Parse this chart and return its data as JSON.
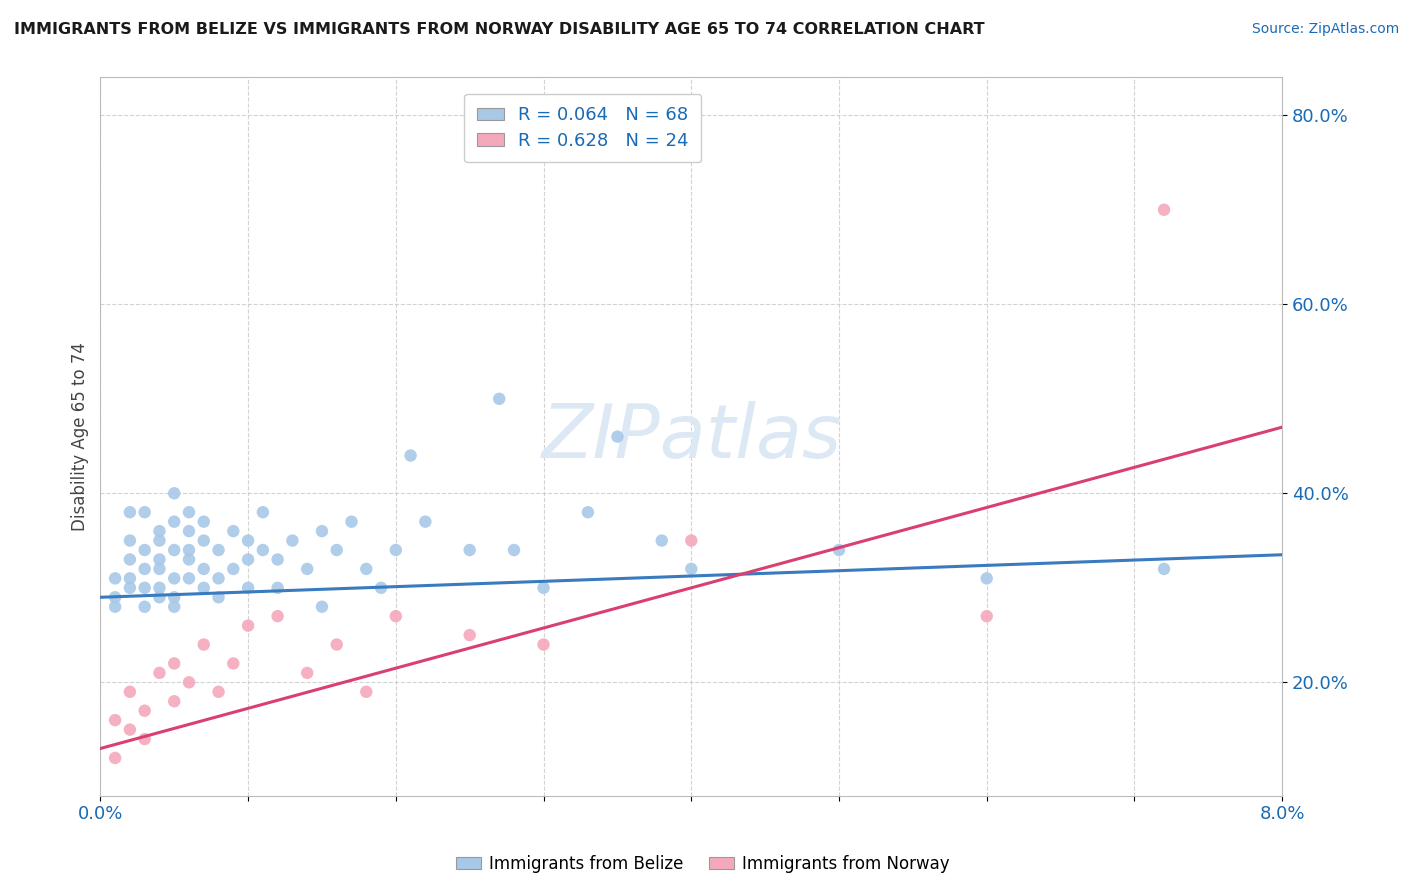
{
  "title": "IMMIGRANTS FROM BELIZE VS IMMIGRANTS FROM NORWAY DISABILITY AGE 65 TO 74 CORRELATION CHART",
  "source_text": "Source: ZipAtlas.com",
  "ylabel": "Disability Age 65 to 74",
  "xlim": [
    0.0,
    0.08
  ],
  "ylim": [
    0.08,
    0.84
  ],
  "x_ticks": [
    0.0,
    0.01,
    0.02,
    0.03,
    0.04,
    0.05,
    0.06,
    0.07,
    0.08
  ],
  "y_ticks": [
    0.2,
    0.4,
    0.6,
    0.8
  ],
  "x_tick_labels": [
    "0.0%",
    "",
    "",
    "",
    "",
    "",
    "",
    "",
    "8.0%"
  ],
  "y_tick_labels": [
    "20.0%",
    "40.0%",
    "60.0%",
    "80.0%"
  ],
  "belize_color": "#a8c8e8",
  "norway_color": "#f4a8bc",
  "belize_line_color": "#3a7abf",
  "norway_line_color": "#d94070",
  "belize_R": 0.064,
  "belize_N": 68,
  "norway_R": 0.628,
  "norway_N": 24,
  "legend_color": "#1a6bb5",
  "belize_line_y0": 0.29,
  "belize_line_y1": 0.335,
  "norway_line_y0": 0.13,
  "norway_line_y1": 0.47,
  "belize_x": [
    0.001,
    0.001,
    0.001,
    0.002,
    0.002,
    0.002,
    0.002,
    0.002,
    0.003,
    0.003,
    0.003,
    0.003,
    0.003,
    0.004,
    0.004,
    0.004,
    0.004,
    0.004,
    0.004,
    0.005,
    0.005,
    0.005,
    0.005,
    0.005,
    0.005,
    0.006,
    0.006,
    0.006,
    0.006,
    0.006,
    0.007,
    0.007,
    0.007,
    0.007,
    0.008,
    0.008,
    0.008,
    0.009,
    0.009,
    0.01,
    0.01,
    0.01,
    0.011,
    0.011,
    0.012,
    0.012,
    0.013,
    0.014,
    0.015,
    0.015,
    0.016,
    0.017,
    0.018,
    0.019,
    0.02,
    0.021,
    0.022,
    0.025,
    0.027,
    0.028,
    0.03,
    0.033,
    0.035,
    0.038,
    0.04,
    0.05,
    0.06,
    0.072
  ],
  "belize_y": [
    0.29,
    0.31,
    0.28,
    0.35,
    0.31,
    0.38,
    0.3,
    0.33,
    0.34,
    0.32,
    0.3,
    0.28,
    0.38,
    0.36,
    0.33,
    0.3,
    0.29,
    0.35,
    0.32,
    0.4,
    0.37,
    0.34,
    0.31,
    0.29,
    0.28,
    0.36,
    0.33,
    0.31,
    0.34,
    0.38,
    0.37,
    0.35,
    0.32,
    0.3,
    0.34,
    0.31,
    0.29,
    0.32,
    0.36,
    0.35,
    0.33,
    0.3,
    0.34,
    0.38,
    0.33,
    0.3,
    0.35,
    0.32,
    0.36,
    0.28,
    0.34,
    0.37,
    0.32,
    0.3,
    0.34,
    0.44,
    0.37,
    0.34,
    0.5,
    0.34,
    0.3,
    0.38,
    0.46,
    0.35,
    0.32,
    0.34,
    0.31,
    0.32
  ],
  "norway_x": [
    0.001,
    0.001,
    0.002,
    0.002,
    0.003,
    0.003,
    0.004,
    0.005,
    0.005,
    0.006,
    0.007,
    0.008,
    0.009,
    0.01,
    0.012,
    0.014,
    0.016,
    0.018,
    0.02,
    0.025,
    0.03,
    0.04,
    0.06,
    0.072
  ],
  "norway_y": [
    0.16,
    0.12,
    0.19,
    0.15,
    0.17,
    0.14,
    0.21,
    0.18,
    0.22,
    0.2,
    0.24,
    0.19,
    0.22,
    0.26,
    0.27,
    0.21,
    0.24,
    0.19,
    0.27,
    0.25,
    0.24,
    0.35,
    0.27,
    0.7
  ],
  "background_color": "#ffffff",
  "grid_color": "#c8c8c8"
}
